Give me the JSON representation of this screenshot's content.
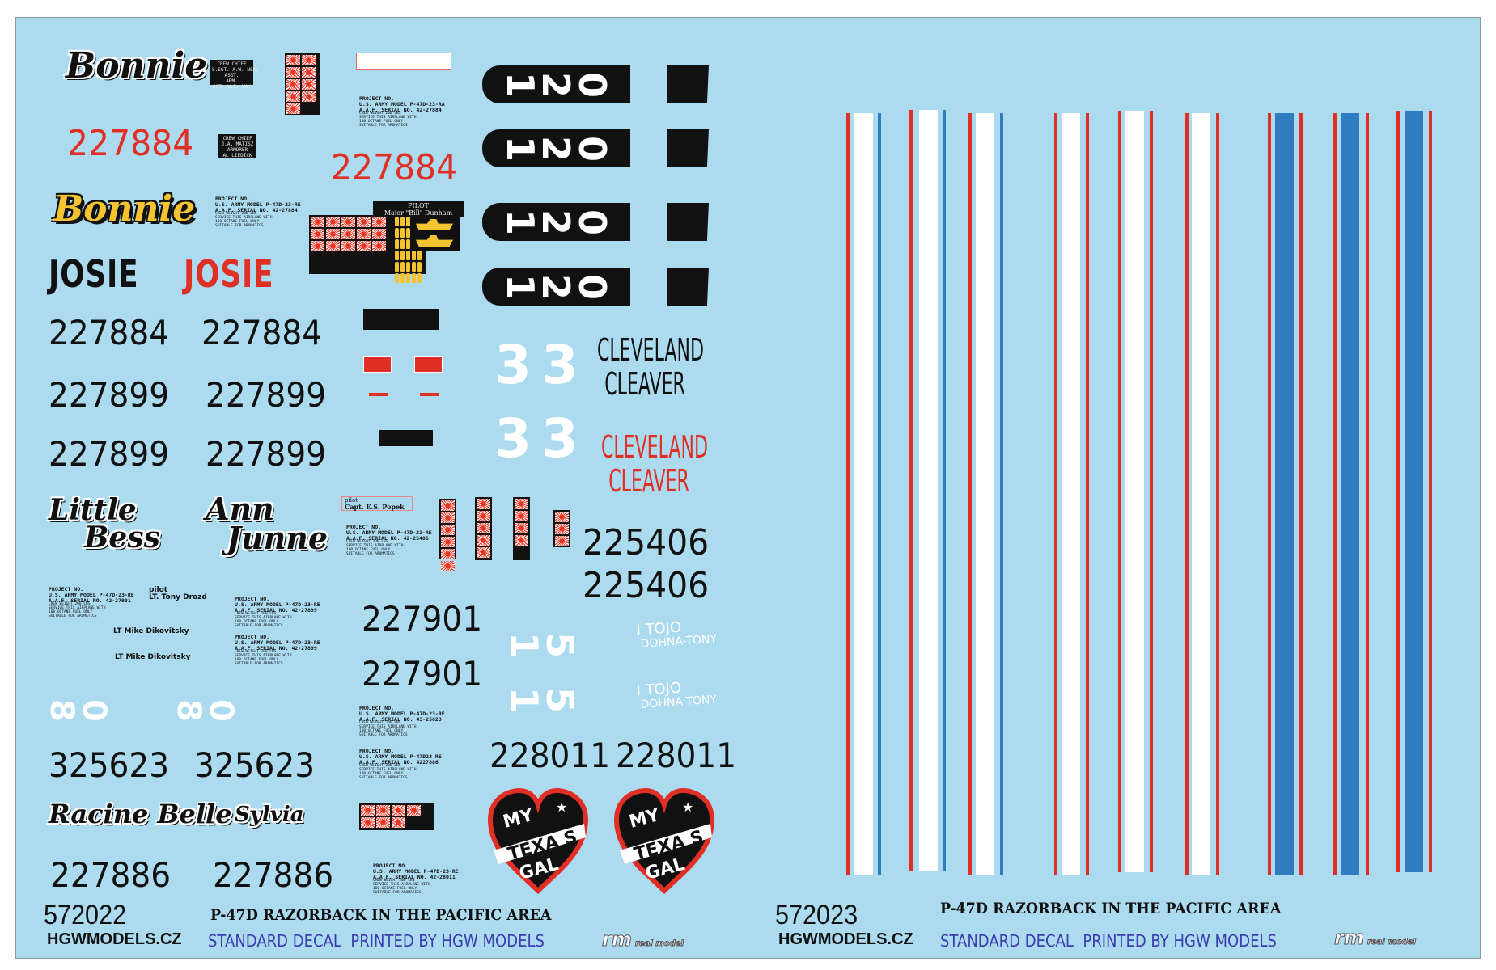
{
  "colors": {
    "panel": "#acdbf0",
    "red": "#e03026",
    "blue": "#2f7cc1",
    "yellow": "#f4c430",
    "black": "#111111",
    "white": "#ffffff"
  },
  "sheets": [
    {
      "code": "572022",
      "website": "HGWMODELS.CZ",
      "title": "P-47D RAZORBACK IN THE PACIFIC AREA",
      "standard": "STANDARD DECAL",
      "printed": "PRINTED BY HGW MODELS",
      "logo_mark": "rm",
      "logo_text": "real model"
    },
    {
      "code": "572023",
      "website": "HGWMODELS.CZ",
      "title": "P-47D RAZORBACK IN THE PACIFIC AREA",
      "standard": "STANDARD DECAL",
      "printed": "PRINTED BY HGW MODELS",
      "logo_mark": "rm",
      "logo_text": "real model"
    }
  ],
  "nose_art": {
    "bonnie_white": "Bonnie",
    "bonnie_yellow": "Bonnie",
    "josie_black": "JOSIE",
    "josie_red": "JOSIE",
    "little_bess": [
      "Little",
      "Bess"
    ],
    "ann_junne": [
      "Ann",
      "Junne"
    ],
    "racine_belle": "Racine Belle",
    "sylvia": "Sylvia",
    "cleveland_black": [
      "CLEVELAND",
      "CLEAVER"
    ],
    "cleveland_red": [
      "CLEVELAND",
      "CLEAVER"
    ],
    "tojo": [
      "I TOJO",
      "DOHNA-TONY"
    ],
    "texas_gal": [
      "MY",
      "TEXA S",
      "GAL"
    ]
  },
  "serials": {
    "s227884": "227884",
    "s227899": "227899",
    "s225406": "225406",
    "s227901": "227901",
    "s325623": "325623",
    "s228011": "228011",
    "s227886": "227886"
  },
  "codes": {
    "c120": "120",
    "c33": "33",
    "c15": "15",
    "c80": "80"
  },
  "plates": {
    "crew1": [
      "CREW CHIEF",
      "S.SGT. A.W. NEAL",
      "ASST.",
      "ARM.",
      "SGT. W.E. WAY"
    ],
    "crew2": [
      "CREW CHIEF",
      "J.A. MATISZ",
      "ARMORER",
      "AL LIEDICK"
    ],
    "pilot_dunham": [
      "PILOT",
      "Major \"Bill\" Dunham"
    ],
    "pilot_popek": [
      "pilot",
      "Capt. E.S. Popek"
    ],
    "pilot_drozd": [
      "pilot",
      "LT. Tony Drozd"
    ],
    "pilot_dikovitsky": "LT Mike Dikovitsky"
  },
  "stencils": [
    [
      "PROJECT NO.",
      "U.S. ARMY MODEL P-47D-23-RA",
      "A.A.F. SERIAL NO. 42-27884",
      "CREW WEIGHT 200 LBS",
      "SERVICE THIS AIRPLANE WITH",
      "100 OCTANE FUEL ONLY",
      "SUITABLE FOR AROMATICS"
    ],
    [
      "PROJECT NO.",
      "U.S. ARMY MODEL P-47D-23-RE",
      "A.A.F. SERIAL NO. 42-27884",
      "CREW WEIGHT 200 LBS",
      "SERVICE THIS AIRPLANE WITH",
      "100 OCTANE FUEL ONLY",
      "SUITABLE FOR AROMATICS"
    ],
    [
      "PROJECT NO.",
      "U.S. ARMY MODEL P-47D-21-RE",
      "A.A.F. SERIAL NO. 42-25406",
      "CREW WEIGHT 200 LBS",
      "SERVICE THIS AIRPLANE WITH",
      "100 OCTANE FUEL ONLY",
      "SUITABLE FOR AROMATICS"
    ],
    [
      "PROJECT NO.",
      "U.S. ARMY MODEL P-47D-23-RE",
      "A.A.F. SERIAL NO. 42-27901",
      "CREW WEIGHT 200 LBS",
      "SERVICE THIS AIRPLANE WITH",
      "100 OCTANE FUEL ONLY",
      "SUITABLE FOR AROMATICS"
    ],
    [
      "PROJECT NO.",
      "U.S. ARMY MODEL P-47D-23-RE",
      "A.A.F. SERIAL NO. 42-27899",
      "CREW WEIGHT 200 LBS",
      "SERVICE THIS AIRPLANE WITH",
      "100 OCTANE FUEL ONLY",
      "SUITABLE FOR AROMATICS"
    ],
    [
      "PROJECT NO.",
      "U.S. ARMY MODEL P-47D-23-RE",
      "A.A.F. SERIAL NO. 42-27899",
      "CREW WEIGHT 200 LBS",
      "SERVICE THIS AIRPLANE WITH",
      "100 OCTANE FUEL ONLY",
      "SUITABLE FOR AROMATICS"
    ],
    [
      "PROJECT NO.",
      "U.S. ARMY MODEL P-47D-23-RE",
      "A.A.F. SERIAL NO. 43-25623",
      "CREW WEIGHT 200 LBS",
      "SERVICE THIS AIRPLANE WITH",
      "100 OCTANE FUEL ONLY",
      "SUITABLE FOR AROMATICS"
    ],
    [
      "PROJECT NO.",
      "U.S. ARMY MODEL P-47D23 RE",
      "A.A.F. SERIAL NO. 4227886",
      "CREW WEIGHT 200 LBS",
      "SERVICE THIS AIRPLANE WITH",
      "100 OCTANE FUEL ONLY",
      "SUITABLE FOR AROMATICS"
    ],
    [
      "PROJECT NO.",
      "U.S. ARMY MODEL P-47D-23-RE",
      "A.A.F. SERIAL NO. 42-28011",
      "CREW WEIGHT 200 LBS",
      "SERVICE THIS AIRPLANE WITH",
      "100 OCTANE FUEL ONLY",
      "SUITABLE FOR AROMATICS"
    ]
  ],
  "kill_markings": {
    "block1_flags": 9,
    "dunham_flags": 15,
    "dunham_bombs": 30,
    "dunham_ships": 2,
    "col1_flags": 6,
    "col2_flags": 5,
    "col3_flags": 4,
    "col4_flags": 3,
    "block4_flags": 7
  }
}
